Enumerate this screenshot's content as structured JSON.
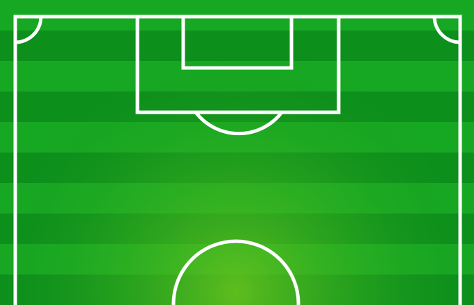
{
  "colors": {
    "grass_dark": "#0d8f1c",
    "grass_light": "#17a823",
    "grass_center_glow": "#63c21f",
    "line_white": "#ffffff",
    "background": "#ffffff"
  },
  "pitch": {
    "view": "half-pitch",
    "stripe_count": 10,
    "markings": [
      "outer-boundary",
      "penalty-area",
      "goal-area",
      "penalty-arc",
      "corner-arc-left",
      "corner-arc-right",
      "center-circle-half"
    ]
  }
}
